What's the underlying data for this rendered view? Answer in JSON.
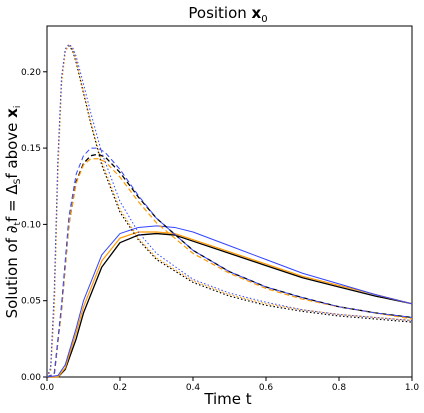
{
  "chart_data": {
    "type": "line",
    "title": "Position x0",
    "title_text": "Position ",
    "title_bold": "x",
    "title_sub": "0",
    "xlabel": "Time t",
    "ylabel_text": "Solution of ∂",
    "ylabel_sub1": "t",
    "ylabel_mid": "f = Δ",
    "ylabel_sub2": "S",
    "ylabel_tail": "f above ",
    "ylabel_bold": "x",
    "ylabel_sub3": "i",
    "xlim": [
      0.0,
      1.0
    ],
    "ylim": [
      0.0,
      0.23
    ],
    "xticks": [
      0.0,
      0.2,
      0.4,
      0.6,
      0.8,
      1.0
    ],
    "xtick_labels": [
      "0.0",
      "0.2",
      "0.4",
      "0.6",
      "0.8",
      "1.0"
    ],
    "yticks": [
      0.0,
      0.05,
      0.1,
      0.15,
      0.2
    ],
    "ytick_labels": [
      "0.00",
      "0.05",
      "0.10",
      "0.15",
      "0.20"
    ],
    "grid": false,
    "legend": "none",
    "series": [
      {
        "style": "solid",
        "color": "#000000",
        "width": 1.3,
        "x": [
          0,
          0.03,
          0.05,
          0.08,
          0.1,
          0.15,
          0.2,
          0.25,
          0.3,
          0.35,
          0.4,
          0.5,
          0.6,
          0.7,
          0.8,
          0.9,
          1.0
        ],
        "y": [
          0,
          0.0,
          0.005,
          0.025,
          0.042,
          0.072,
          0.088,
          0.093,
          0.094,
          0.093,
          0.089,
          0.081,
          0.073,
          0.065,
          0.059,
          0.053,
          0.048
        ]
      },
      {
        "style": "solid",
        "color": "#ff9900",
        "width": 1.2,
        "x": [
          0,
          0.03,
          0.05,
          0.08,
          0.1,
          0.15,
          0.2,
          0.25,
          0.3,
          0.35,
          0.4,
          0.5,
          0.6,
          0.7,
          0.8,
          0.9,
          1.0
        ],
        "y": [
          0,
          0.0,
          0.006,
          0.029,
          0.046,
          0.076,
          0.091,
          0.095,
          0.095,
          0.094,
          0.09,
          0.082,
          0.074,
          0.066,
          0.06,
          0.054,
          0.048
        ]
      },
      {
        "style": "solid",
        "color": "#3344ff",
        "width": 1.0,
        "x": [
          0,
          0.03,
          0.05,
          0.08,
          0.1,
          0.15,
          0.2,
          0.25,
          0.3,
          0.35,
          0.4,
          0.5,
          0.6,
          0.7,
          0.8,
          0.9,
          1.0
        ],
        "y": [
          0,
          0.001,
          0.008,
          0.032,
          0.05,
          0.08,
          0.094,
          0.098,
          0.099,
          0.098,
          0.095,
          0.086,
          0.077,
          0.068,
          0.061,
          0.054,
          0.048
        ]
      },
      {
        "style": "dashed",
        "color": "#000000",
        "width": 1.3,
        "x": [
          0,
          0.02,
          0.04,
          0.06,
          0.08,
          0.1,
          0.12,
          0.14,
          0.16,
          0.2,
          0.25,
          0.3,
          0.4,
          0.5,
          0.6,
          0.7,
          0.8,
          0.9,
          1.0
        ],
        "y": [
          0,
          0.002,
          0.045,
          0.1,
          0.128,
          0.14,
          0.145,
          0.146,
          0.144,
          0.134,
          0.118,
          0.104,
          0.083,
          0.069,
          0.059,
          0.052,
          0.046,
          0.042,
          0.039
        ]
      },
      {
        "style": "dashed",
        "color": "#ff9900",
        "width": 1.2,
        "x": [
          0,
          0.02,
          0.04,
          0.06,
          0.08,
          0.1,
          0.12,
          0.14,
          0.16,
          0.2,
          0.25,
          0.3,
          0.4,
          0.5,
          0.6,
          0.7,
          0.8,
          0.9,
          1.0
        ],
        "y": [
          0,
          0.002,
          0.045,
          0.1,
          0.127,
          0.139,
          0.143,
          0.143,
          0.141,
          0.131,
          0.115,
          0.101,
          0.081,
          0.068,
          0.058,
          0.051,
          0.046,
          0.042,
          0.038
        ]
      },
      {
        "style": "dashed",
        "color": "#3344ff",
        "width": 1.0,
        "x": [
          0,
          0.02,
          0.04,
          0.06,
          0.08,
          0.1,
          0.12,
          0.14,
          0.16,
          0.2,
          0.25,
          0.3,
          0.4,
          0.5,
          0.6,
          0.7,
          0.8,
          0.9,
          1.0
        ],
        "y": [
          0,
          0.002,
          0.048,
          0.105,
          0.133,
          0.145,
          0.15,
          0.15,
          0.147,
          0.136,
          0.119,
          0.104,
          0.083,
          0.069,
          0.059,
          0.052,
          0.046,
          0.042,
          0.039
        ]
      },
      {
        "style": "dotted",
        "color": "#000000",
        "width": 1.2,
        "x": [
          0,
          0.01,
          0.02,
          0.03,
          0.04,
          0.05,
          0.06,
          0.07,
          0.08,
          0.1,
          0.12,
          0.15,
          0.2,
          0.25,
          0.3,
          0.4,
          0.5,
          0.6,
          0.7,
          0.8,
          0.9,
          1.0
        ],
        "y": [
          0,
          0.005,
          0.05,
          0.14,
          0.195,
          0.214,
          0.217,
          0.214,
          0.206,
          0.186,
          0.166,
          0.139,
          0.108,
          0.09,
          0.077,
          0.062,
          0.053,
          0.047,
          0.043,
          0.04,
          0.038,
          0.036
        ]
      },
      {
        "style": "dotted",
        "color": "#ff9900",
        "width": 1.2,
        "x": [
          0,
          0.01,
          0.02,
          0.03,
          0.04,
          0.05,
          0.06,
          0.07,
          0.08,
          0.1,
          0.12,
          0.15,
          0.2,
          0.25,
          0.3,
          0.4,
          0.5,
          0.6,
          0.7,
          0.8,
          0.9,
          1.0
        ],
        "y": [
          0,
          0.004,
          0.045,
          0.135,
          0.192,
          0.213,
          0.218,
          0.215,
          0.207,
          0.187,
          0.167,
          0.141,
          0.11,
          0.091,
          0.078,
          0.063,
          0.054,
          0.048,
          0.044,
          0.041,
          0.039,
          0.037
        ]
      },
      {
        "style": "dotted",
        "color": "#3344ff",
        "width": 1.0,
        "x": [
          0,
          0.01,
          0.02,
          0.03,
          0.04,
          0.05,
          0.06,
          0.07,
          0.08,
          0.1,
          0.12,
          0.15,
          0.2,
          0.25,
          0.3,
          0.4,
          0.5,
          0.6,
          0.7,
          0.8,
          0.9,
          1.0
        ],
        "y": [
          0,
          0.006,
          0.058,
          0.145,
          0.197,
          0.215,
          0.218,
          0.216,
          0.21,
          0.192,
          0.173,
          0.147,
          0.115,
          0.095,
          0.081,
          0.064,
          0.055,
          0.049,
          0.044,
          0.041,
          0.039,
          0.037
        ]
      }
    ]
  }
}
